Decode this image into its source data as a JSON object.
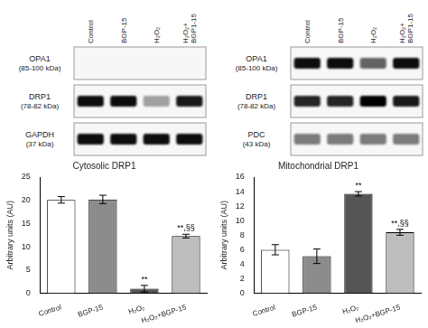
{
  "blots": [
    {
      "lanes": [
        "Control",
        "BGP-15",
        "H₂O₂",
        "H₂O₂+ BGP1-15"
      ],
      "rows": [
        {
          "label": "OPA1",
          "sublabel": "(85-100 kDa)",
          "intensity": [
            0,
            0,
            0,
            0
          ]
        },
        {
          "label": "DRP1",
          "sublabel": "(78-82 kDa)",
          "intensity": [
            0.95,
            0.95,
            0.35,
            0.9
          ]
        },
        {
          "label": "GAPDH",
          "sublabel": "(37 kDa)",
          "intensity": [
            0.95,
            0.95,
            0.95,
            0.95
          ]
        }
      ]
    },
    {
      "lanes": [
        "Control",
        "BGP-15",
        "H₂O₂",
        "H₂O₂+ BGP1-15"
      ],
      "rows": [
        {
          "label": "OPA1",
          "sublabel": "(85-100 kDa)",
          "intensity": [
            0.95,
            0.95,
            0.6,
            0.95
          ]
        },
        {
          "label": "DRP1",
          "sublabel": "(78-82 kDa)",
          "intensity": [
            0.85,
            0.85,
            1,
            0.9
          ]
        },
        {
          "label": "PDC",
          "sublabel": "(43 kDa)",
          "intensity": [
            0.5,
            0.5,
            0.5,
            0.5
          ]
        }
      ]
    }
  ],
  "chart_data": [
    {
      "type": "bar",
      "title": "Cytosolic DRP1",
      "y_label": "Arbitrary units (AU)",
      "categories": [
        "Control",
        "BGP-15",
        "H₂O₂",
        "H₂O₂+BGP-15"
      ],
      "values": [
        20.1,
        20.2,
        1.0,
        12.3
      ],
      "errors": [
        0.7,
        0.9,
        0.7,
        0.4
      ],
      "colors": [
        "#ffffff",
        "#8c8c8c",
        "#555555",
        "#bdbdbd"
      ],
      "ylim": [
        0,
        25
      ],
      "yticks": [
        0,
        5,
        10,
        15,
        20,
        25
      ],
      "grid": false,
      "annotations": [
        {
          "category": "H₂O₂",
          "text": "**"
        },
        {
          "category": "H₂O₂+BGP-15",
          "text": "**,§§"
        }
      ]
    },
    {
      "type": "bar",
      "title": "Mitochondrial DRP1",
      "y_label": "Arbitrary units (AU)",
      "categories": [
        "Control",
        "BGP-15",
        "H₂O₂",
        "H₂O₂+BGP-15"
      ],
      "values": [
        6.0,
        5.1,
        13.7,
        8.4
      ],
      "errors": [
        0.7,
        1.0,
        0.3,
        0.4
      ],
      "colors": [
        "#ffffff",
        "#8c8c8c",
        "#555555",
        "#bdbdbd"
      ],
      "ylim": [
        0,
        16
      ],
      "yticks": [
        0,
        2,
        4,
        6,
        8,
        10,
        12,
        14,
        16
      ],
      "grid": false,
      "annotations": [
        {
          "category": "H₂O₂",
          "text": "**"
        },
        {
          "category": "H₂O₂+BGP-15",
          "text": "**,§§"
        }
      ]
    }
  ]
}
